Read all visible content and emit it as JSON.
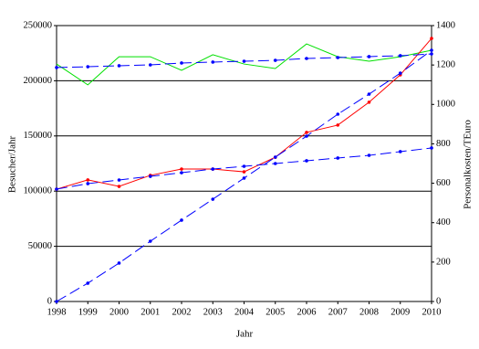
{
  "chart_data": {
    "type": "line",
    "x_label": "Jahr",
    "y_label": "Besucher/Jahr",
    "y2_label": "Personalkosten/TEuro",
    "x": [
      1998,
      1999,
      2000,
      2001,
      2002,
      2003,
      2004,
      2005,
      2006,
      2007,
      2008,
      2009,
      2010
    ],
    "xlim": [
      1998,
      2010
    ],
    "xticks": [
      1998,
      1999,
      2000,
      2001,
      2002,
      2003,
      2004,
      2005,
      2006,
      2007,
      2008,
      2009,
      2010
    ],
    "ylim": [
      0,
      250000
    ],
    "yticks": [
      0,
      50000,
      100000,
      150000,
      200000,
      250000
    ],
    "y2lim": [
      0,
      1400
    ],
    "y2ticks": [
      0,
      200,
      400,
      600,
      800,
      1000,
      1200,
      1400
    ],
    "grid": true,
    "series": [
      {
        "color": "#00e000",
        "axis": "y2",
        "dashed": false,
        "markers": false,
        "values": [
          1205,
          1099,
          1242,
          1242,
          1173,
          1252,
          1205,
          1182,
          1307,
          1242,
          1219,
          1242,
          1275
        ]
      },
      {
        "color": "#ff0000",
        "axis": "y2",
        "dashed": false,
        "markers": true,
        "values": [
          570,
          617,
          584,
          640,
          672,
          672,
          658,
          732,
          858,
          895,
          1011,
          1150,
          1335
        ]
      },
      {
        "color": "#0000ff",
        "dashed": true,
        "markers": true,
        "values": [
          212000,
          212700,
          213600,
          214400,
          216100,
          216900,
          217700,
          218500,
          220200,
          221000,
          221900,
          222700,
          224300
        ]
      },
      {
        "color": "#0000ff",
        "dashed": true,
        "markers": true,
        "values": [
          101800,
          106800,
          110100,
          113400,
          116700,
          120000,
          122500,
          125000,
          127500,
          130000,
          132400,
          135800,
          139100
        ]
      },
      {
        "color": "#0000ff",
        "dashed": true,
        "markers": true,
        "values": [
          0,
          16600,
          34800,
          54600,
          73700,
          92700,
          111800,
          130800,
          149800,
          169700,
          187900,
          206900,
          227600
        ]
      }
    ]
  }
}
